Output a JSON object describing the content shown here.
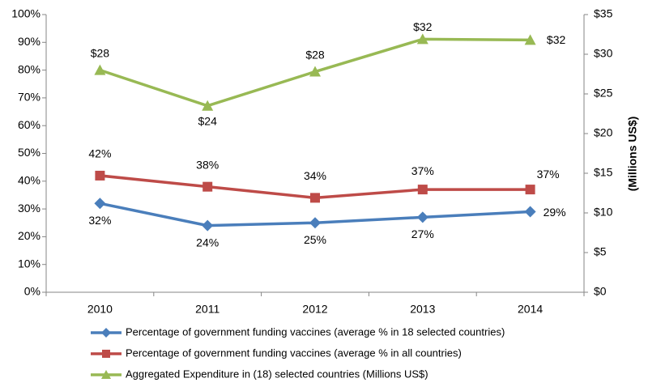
{
  "chart_data": {
    "type": "line",
    "categories": [
      "2010",
      "2011",
      "2012",
      "2013",
      "2014"
    ],
    "series": [
      {
        "name": "Percentage of government funding vaccines (average % in 18 selected countries)",
        "color": "#4a7ebb",
        "marker": "diamond",
        "values": [
          32,
          24,
          25,
          27,
          29
        ],
        "value_labels": [
          "32%",
          "24%",
          "25%",
          "27%",
          "29%"
        ]
      },
      {
        "name": "Percentage of government funding vaccines (average % in all countries)",
        "color": "#be4b48",
        "marker": "square",
        "values": [
          42,
          38,
          34,
          37,
          37
        ],
        "value_labels": [
          "42%",
          "38%",
          "34%",
          "37%",
          "37%"
        ]
      },
      {
        "name": "Aggregated Expenditure in (18) selected countries (Millions US$)",
        "color": "#98b954",
        "marker": "triangle",
        "axis": "y2",
        "values": [
          28,
          23.5,
          27.8,
          31.9,
          31.8
        ],
        "value_labels": [
          "$28",
          "$24",
          "$28",
          "$32",
          "$32"
        ]
      }
    ],
    "ylim": [
      0,
      100
    ],
    "yticks": [
      {
        "value": 0,
        "label": "0%"
      },
      {
        "value": 10,
        "label": "10%"
      },
      {
        "value": 20,
        "label": "20%"
      },
      {
        "value": 30,
        "label": "30%"
      },
      {
        "value": 40,
        "label": "40%"
      },
      {
        "value": 50,
        "label": "50%"
      },
      {
        "value": 60,
        "label": "60%"
      },
      {
        "value": 70,
        "label": "70%"
      },
      {
        "value": 80,
        "label": "80%"
      },
      {
        "value": 90,
        "label": "90%"
      },
      {
        "value": 100,
        "label": "100%"
      }
    ],
    "y2lim": [
      0,
      35
    ],
    "y2ticks": [
      {
        "value": 0,
        "label": "$0"
      },
      {
        "value": 5,
        "label": "$5"
      },
      {
        "value": 10,
        "label": "$10"
      },
      {
        "value": 15,
        "label": "$15"
      },
      {
        "value": 20,
        "label": "$20"
      },
      {
        "value": 25,
        "label": "$25"
      },
      {
        "value": 30,
        "label": "$30"
      },
      {
        "value": 35,
        "label": "$35"
      }
    ],
    "y2label": "(Millions US$)",
    "grid": false,
    "legend": "bottom"
  }
}
